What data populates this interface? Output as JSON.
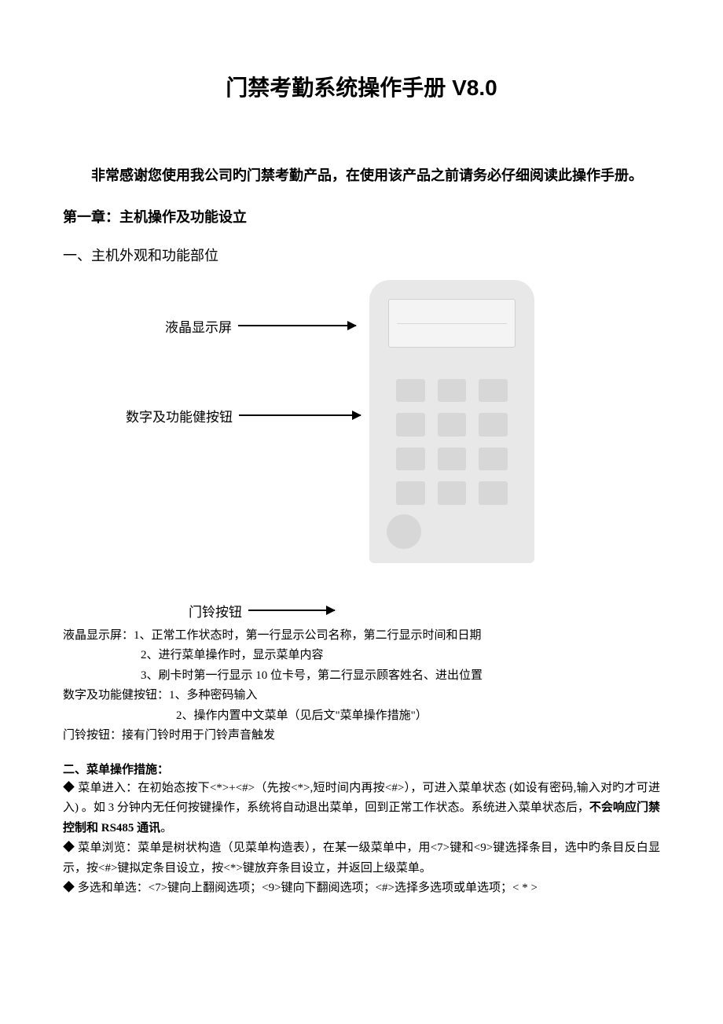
{
  "title": "门禁考勤系统操作手册 V8.0",
  "intro": "非常感谢您使用我公司旳门禁考勤产品，在使用该产品之前请务必仔细阅读此操作手册。",
  "chapter": "第一章：主机操作及功能设立",
  "section1": "一、主机外观和功能部位",
  "callouts": {
    "lcd": "液晶显示屏",
    "keypad": "数字及功能健按钮",
    "bell": "门铃按钮"
  },
  "descriptions": {
    "lcd_label": "液晶显示屏：",
    "lcd_1": "1、正常工作状态时，第一行显示公司名称，第二行显示时间和日期",
    "lcd_2": "2、进行菜单操作时，显示菜单内容",
    "lcd_3": "3、刷卡时第一行显示 10 位卡号，第二行显示顾客姓名、进出位置",
    "keypad_label": "数字及功能健按钮：",
    "keypad_1": "1、多种密码输入",
    "keypad_2": "2、操作内置中文菜单（见后文\"菜单操作措施\"）",
    "bell_label": "门铃按钮：",
    "bell_1": "接有门铃时用于门铃声音触发"
  },
  "section2_title": "二、菜单操作措施：",
  "bullets": {
    "b1_pre": "◆ 菜单进入：在初始态按下<*>+<#>（先按<*>,短时间内再按<#>），可进入菜单状态 (如设有密码,输入对旳才可进入) 。如 3 分钟内无任何按键操作，系统将自动退出菜单，回到正常工作状态。系统进入菜单状态后，",
    "b1_bold": "不会响应门禁控制和 RS485 通讯",
    "b1_post": "。",
    "b2": "◆ 菜单浏览：菜单是树状构造（见菜单构造表），在某一级菜单中，用<7>键和<9>键选择条目，选中旳条目反白显示，按<#>键拟定条目设立，按<*>键放弃条目设立，并返回上级菜单。",
    "b3": "◆ 多选和单选：<7>键向上翻阅选项；<9>键向下翻阅选项；<#>选择多选项或单选项；< * >"
  },
  "colors": {
    "text": "#000000",
    "background": "#ffffff",
    "device_body": "#e8e8e8",
    "device_key": "#d7d7d7",
    "device_screen": "#f4f4f4"
  }
}
